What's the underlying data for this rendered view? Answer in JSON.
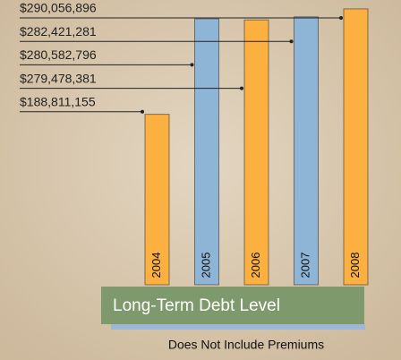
{
  "chart_data": {
    "type": "bar",
    "title": "Long-Term Debt Level",
    "subtitle": "Does Not Include Premiums",
    "categories": [
      "2004",
      "2005",
      "2006",
      "2007",
      "2008"
    ],
    "values": [
      188811155,
      280582796,
      279478381,
      282421281,
      290056896
    ],
    "value_labels": [
      "$188,811,155",
      "$280,582,796",
      "$279,478,381",
      "$282,421,281",
      "$290,056,896"
    ],
    "colors": [
      "#fbb040",
      "#8fb5d6",
      "#fbb040",
      "#8fb5d6",
      "#fbb040"
    ],
    "ylim": [
      25000000,
      290000000
    ]
  }
}
